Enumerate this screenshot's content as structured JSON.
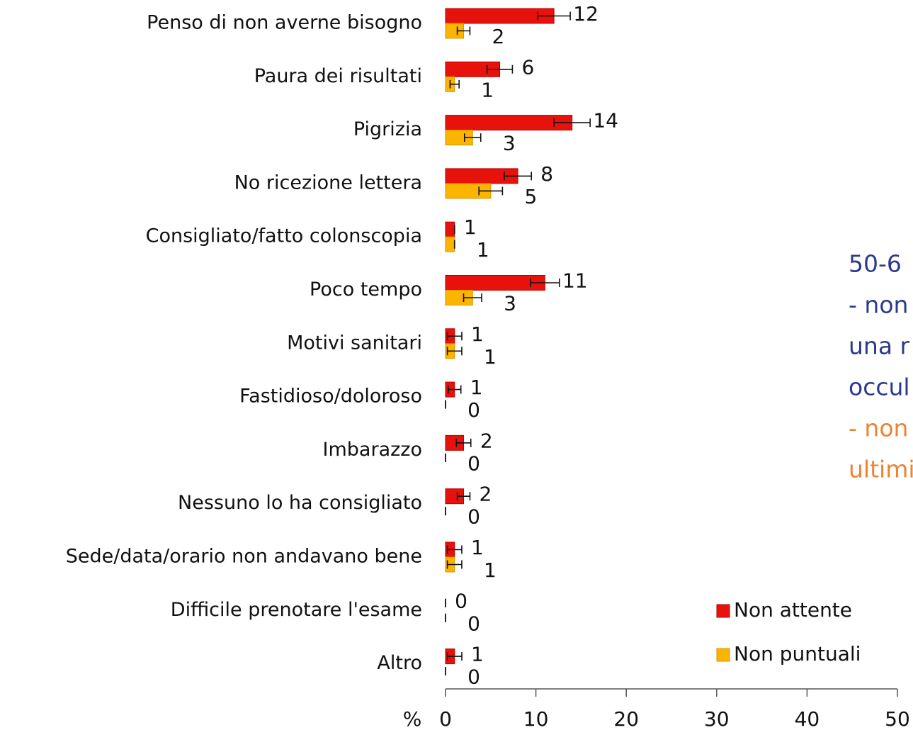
{
  "chart_data": {
    "type": "bar",
    "orientation": "horizontal",
    "xlabel": "%",
    "categories": [
      "Penso di non averne bisogno",
      "Paura dei risultati",
      "Pigrizia",
      "No ricezione lettera",
      "Consigliato/fatto colonscopia",
      "Poco tempo",
      "Motivi sanitari",
      "Fastidioso/doloroso",
      "Imbarazzo",
      "Nessuno lo ha consigliato",
      "Sede/data/orario non andavano bene",
      "Difficile prenotare l'esame",
      "Altro"
    ],
    "series": [
      {
        "name": "Non attente",
        "color": "#e8120c",
        "values": [
          12,
          6,
          14,
          8,
          1,
          11,
          1,
          1,
          2,
          2,
          1,
          0,
          1
        ],
        "errors": [
          1.8,
          1.4,
          2.0,
          1.5,
          0,
          1.6,
          0.8,
          0.7,
          0.8,
          0.7,
          0.8,
          0,
          0.8
        ]
      },
      {
        "name": "Non puntuali",
        "color": "#fbb400",
        "values": [
          2,
          1,
          3,
          5,
          1,
          3,
          1,
          0,
          0,
          0,
          1,
          0,
          0
        ],
        "errors": [
          0.7,
          0.5,
          0.9,
          1.3,
          0,
          1.0,
          0.8,
          0,
          0,
          0,
          0.8,
          0,
          0
        ]
      }
    ],
    "xlim": [
      0,
      50
    ],
    "xticks": [
      0,
      10,
      20,
      30,
      40,
      50
    ],
    "legend": "lower right",
    "annotations": [
      {
        "text": "50-6",
        "color": "#2b3a8c"
      },
      {
        "text": "- non",
        "color": "#2b3a8c"
      },
      {
        "text": "una r",
        "color": "#2b3a8c"
      },
      {
        "text": "occul",
        "color": "#2b3a8c"
      },
      {
        "text": "- non",
        "color": "#ee8233"
      },
      {
        "text": "ultimi",
        "color": "#ee8233"
      }
    ]
  }
}
